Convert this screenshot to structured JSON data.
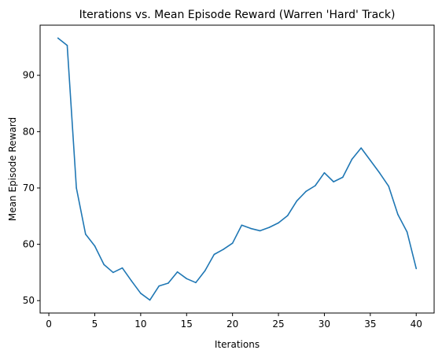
{
  "chart_data": {
    "type": "line",
    "title": "Iterations vs. Mean Episode Reward (Warren 'Hard' Track)",
    "xlabel": "Iterations",
    "ylabel": "Mean Episode Reward",
    "xlim": [
      -0.95,
      41.95
    ],
    "ylim": [
      47.8,
      98.9
    ],
    "xticks": [
      0,
      5,
      10,
      15,
      20,
      25,
      30,
      35,
      40
    ],
    "yticks": [
      50,
      60,
      70,
      80,
      90
    ],
    "grid": false,
    "legend": "none",
    "series": [
      {
        "color": "#1f77b4",
        "x": [
          1,
          2,
          3,
          4,
          5,
          6,
          7,
          8,
          9,
          10,
          11,
          12,
          13,
          14,
          15,
          16,
          17,
          18,
          19,
          20,
          21,
          22,
          23,
          24,
          25,
          26,
          27,
          28,
          29,
          30,
          31,
          32,
          33,
          34,
          35,
          36,
          37,
          38,
          39,
          40
        ],
        "values": [
          96.6,
          95.3,
          70.0,
          61.8,
          59.7,
          56.4,
          55.0,
          55.8,
          53.5,
          51.3,
          50.1,
          52.6,
          53.1,
          55.1,
          53.9,
          53.2,
          55.3,
          58.2,
          59.1,
          60.2,
          63.4,
          62.8,
          62.4,
          63.0,
          63.8,
          65.1,
          67.7,
          69.4,
          70.4,
          72.7,
          71.1,
          71.9,
          75.1,
          77.1,
          74.9,
          72.7,
          70.3,
          65.3,
          62.2,
          55.7
        ]
      }
    ]
  }
}
